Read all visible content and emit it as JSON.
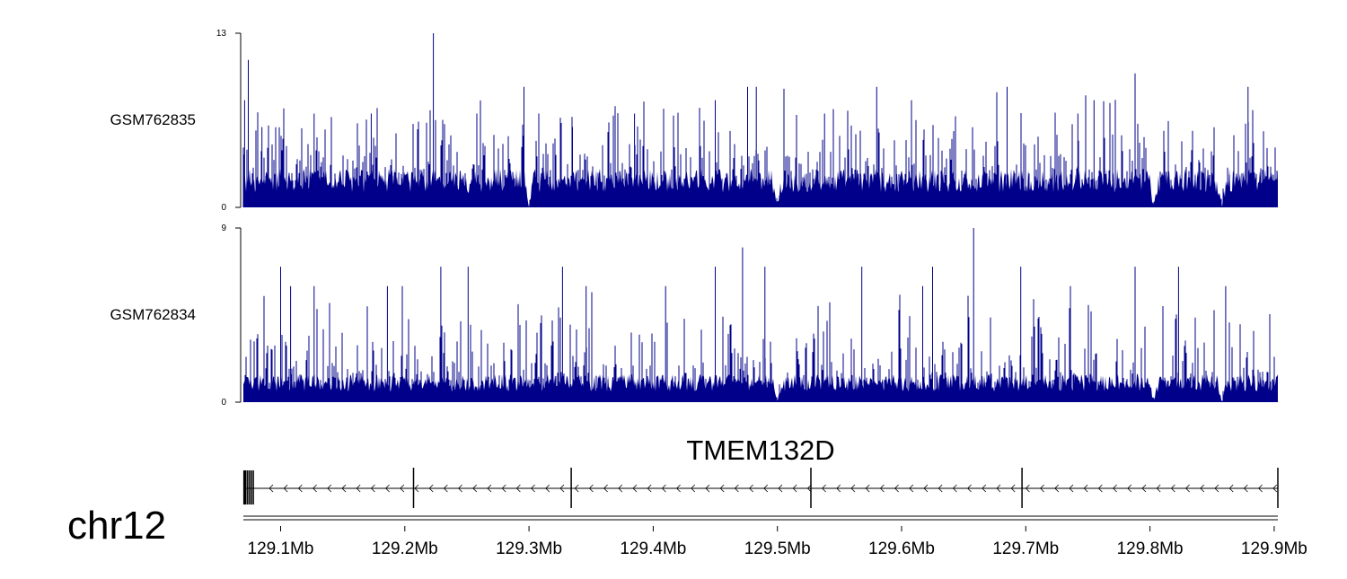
{
  "chart_data": {
    "type": "area",
    "chromosome": "chr12",
    "bar_color": "#00008b",
    "axis_color": "#000000",
    "genome_axis": {
      "unit": "Mb",
      "range": [
        129.07,
        129.903
      ],
      "tick_labels": [
        "129.1Mb",
        "129.2Mb",
        "129.3Mb",
        "129.4Mb",
        "129.5Mb",
        "129.6Mb",
        "129.7Mb",
        "129.8Mb",
        "129.9Mb"
      ]
    },
    "tracks": [
      {
        "name": "GSM762835",
        "ylim": [
          0,
          13
        ],
        "ytick_max": "13",
        "ytick_min": "0",
        "baseline": 2,
        "peaks": [
          {
            "x": 129.074,
            "y": 11
          },
          {
            "x": 129.071,
            "y": 8
          },
          {
            "x": 129.085,
            "y": 6
          },
          {
            "x": 129.127,
            "y": 7
          },
          {
            "x": 129.173,
            "y": 7
          },
          {
            "x": 129.223,
            "y": 13
          },
          {
            "x": 129.258,
            "y": 7
          },
          {
            "x": 129.296,
            "y": 9
          },
          {
            "x": 129.335,
            "y": 6
          },
          {
            "x": 129.385,
            "y": 7
          },
          {
            "x": 129.45,
            "y": 8
          },
          {
            "x": 129.476,
            "y": 9
          },
          {
            "x": 129.483,
            "y": 9
          },
          {
            "x": 129.58,
            "y": 9
          },
          {
            "x": 129.538,
            "y": 7
          },
          {
            "x": 129.608,
            "y": 8
          },
          {
            "x": 129.685,
            "y": 9
          },
          {
            "x": 129.742,
            "y": 7
          },
          {
            "x": 129.755,
            "y": 8
          },
          {
            "x": 129.788,
            "y": 10
          },
          {
            "x": 129.879,
            "y": 9
          }
        ],
        "dips": [
          129.3,
          129.5,
          129.803,
          129.858
        ]
      },
      {
        "name": "GSM762834",
        "ylim": [
          0,
          9
        ],
        "ytick_max": "9",
        "ytick_min": "0",
        "baseline": 1,
        "peaks": [
          {
            "x": 129.1,
            "y": 7
          },
          {
            "x": 129.108,
            "y": 6
          },
          {
            "x": 129.127,
            "y": 6
          },
          {
            "x": 129.186,
            "y": 6
          },
          {
            "x": 129.198,
            "y": 6
          },
          {
            "x": 129.229,
            "y": 7
          },
          {
            "x": 129.251,
            "y": 7
          },
          {
            "x": 129.327,
            "y": 7
          },
          {
            "x": 129.346,
            "y": 6
          },
          {
            "x": 129.41,
            "y": 6
          },
          {
            "x": 129.45,
            "y": 7
          },
          {
            "x": 129.472,
            "y": 8
          },
          {
            "x": 129.49,
            "y": 7
          },
          {
            "x": 129.568,
            "y": 7
          },
          {
            "x": 129.617,
            "y": 6
          },
          {
            "x": 129.625,
            "y": 7
          },
          {
            "x": 129.658,
            "y": 9
          },
          {
            "x": 129.696,
            "y": 7
          },
          {
            "x": 129.736,
            "y": 6
          },
          {
            "x": 129.788,
            "y": 7
          },
          {
            "x": 129.823,
            "y": 7
          },
          {
            "x": 129.861,
            "y": 6
          }
        ],
        "dips": [
          129.5,
          129.803,
          129.858
        ]
      }
    ],
    "gene": {
      "name": "TMEM132D",
      "strand": "-",
      "start": 129.071,
      "end": 129.903,
      "exons": [
        129.071,
        129.072,
        129.0735,
        129.075,
        129.0765,
        129.078,
        129.207,
        129.334,
        129.527,
        129.697,
        129.903
      ]
    }
  }
}
